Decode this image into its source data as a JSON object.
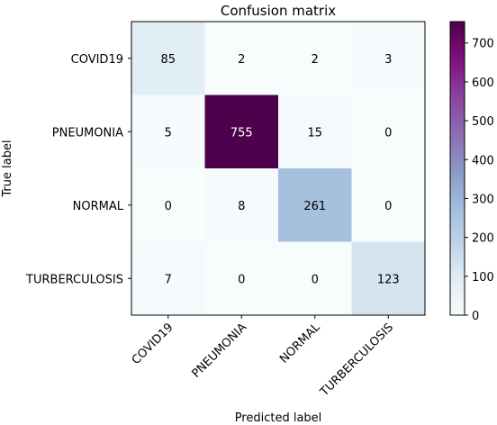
{
  "chart_data": {
    "type": "heatmap",
    "title": "Confusion matrix",
    "xlabel": "Predicted label",
    "ylabel": "True label",
    "x_categories": [
      "COVID19",
      "PNEUMONIA",
      "NORMAL",
      "TURBERCULOSIS"
    ],
    "y_categories": [
      "COVID19",
      "PNEUMONIA",
      "NORMAL",
      "TURBERCULOSIS"
    ],
    "values": [
      [
        85,
        2,
        2,
        3
      ],
      [
        5,
        755,
        15,
        0
      ],
      [
        0,
        8,
        261,
        0
      ],
      [
        7,
        0,
        0,
        123
      ]
    ],
    "colormap": "BuPu",
    "colorbar": {
      "min": 0,
      "max": 755,
      "ticks": [
        0,
        100,
        200,
        300,
        400,
        500,
        600,
        700
      ]
    },
    "grid": false
  }
}
